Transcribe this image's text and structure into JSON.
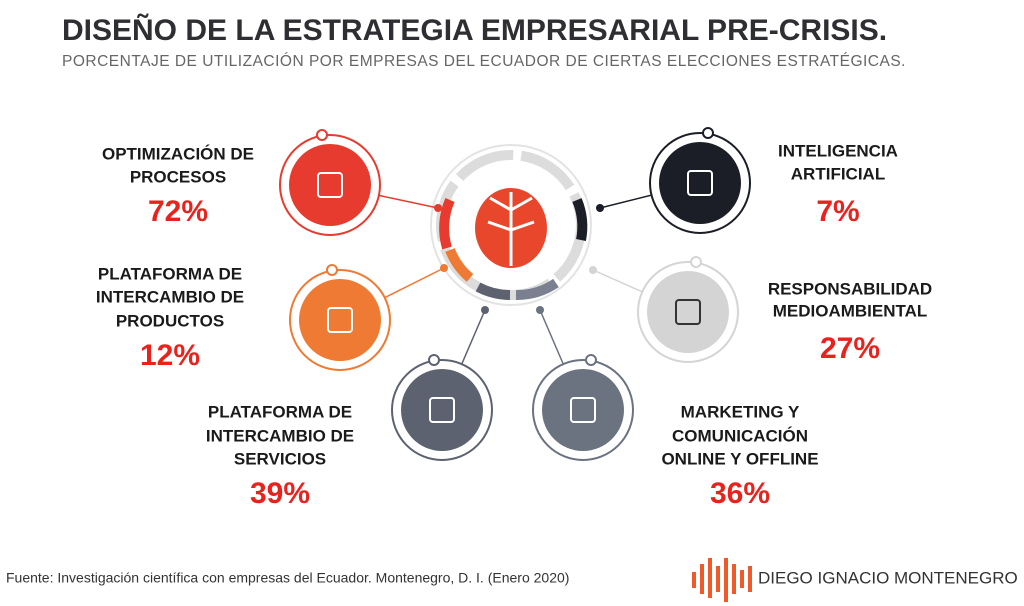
{
  "header": {
    "title": "DISEÑO DE LA ESTRATEGIA EMPRESARIAL PRE-CRISIS.",
    "subtitle": "PORCENTAJE DE UTILIZACIÓN POR EMPRESAS DEL ECUADOR DE CIERTAS ELECCIONES ESTRATÉGICAS."
  },
  "nodes": [
    {
      "lines": [
        "OPTIMIZACIÓN DE",
        "PROCESOS"
      ],
      "percent": "72%"
    },
    {
      "lines": [
        "PLATAFORMA DE",
        "INTERCAMBIO DE",
        "PRODUCTOS"
      ],
      "percent": "12%"
    },
    {
      "lines": [
        "PLATAFORMA DE",
        "INTERCAMBIO DE",
        "SERVICIOS"
      ],
      "percent": "39%"
    },
    {
      "lines": [
        "MARKETING Y",
        "COMUNICACIÓN",
        "ONLINE Y OFFLINE"
      ],
      "percent": "36%"
    },
    {
      "lines": [
        "RESPONSABILIDAD",
        "MEDIOAMBIENTAL"
      ],
      "percent": "27%"
    },
    {
      "lines": [
        "INTELIGENCIA",
        "ARTIFICIAL"
      ],
      "percent": "7%"
    }
  ],
  "footer": {
    "source": "Fuente: Investigación científica con empresas del Ecuador. Montenegro, D. I. (Enero 2020)",
    "brand": "DIEGO IGNACIO MONTENEGRO"
  }
}
